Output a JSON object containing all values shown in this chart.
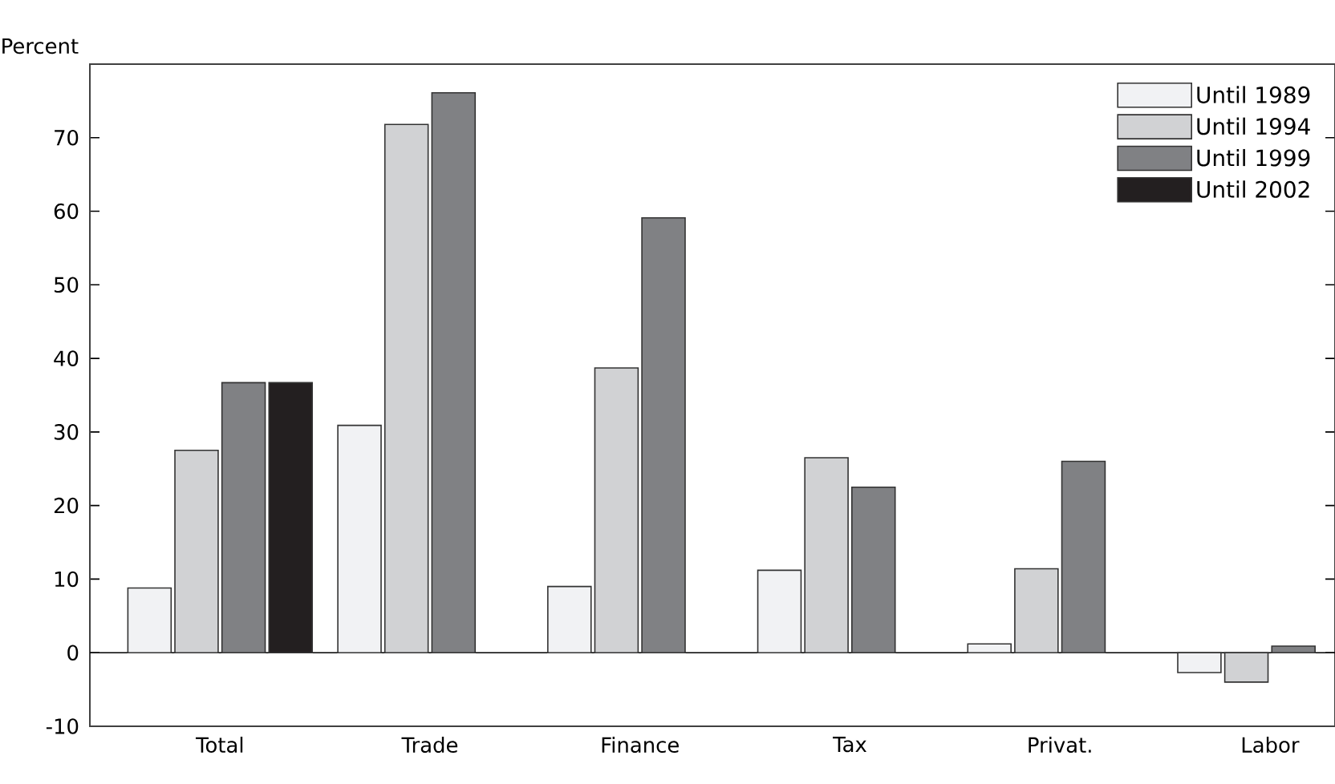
{
  "chart_data": {
    "type": "bar",
    "ylabel": "Percent",
    "categories": [
      "Total",
      "Trade",
      "Finance",
      "Tax",
      "Privat.",
      "Labor"
    ],
    "series": [
      {
        "name": "Until 1989",
        "color": "#f1f2f4",
        "values": [
          8.8,
          30.9,
          9.0,
          11.2,
          1.2,
          -2.7
        ]
      },
      {
        "name": "Until 1994",
        "color": "#d1d2d4",
        "values": [
          27.5,
          71.8,
          38.7,
          26.5,
          11.4,
          -4.0
        ]
      },
      {
        "name": "Until 1999",
        "color": "#808184",
        "values": [
          36.7,
          76.1,
          59.1,
          22.5,
          26.0,
          0.9
        ]
      },
      {
        "name": "Until 2002",
        "color": "#231f20",
        "values": [
          36.7,
          null,
          null,
          null,
          null,
          null
        ]
      }
    ],
    "ylim": [
      -10,
      80
    ],
    "yticks": [
      -10,
      0,
      10,
      20,
      30,
      40,
      50,
      60,
      70
    ],
    "legend": "top right"
  }
}
